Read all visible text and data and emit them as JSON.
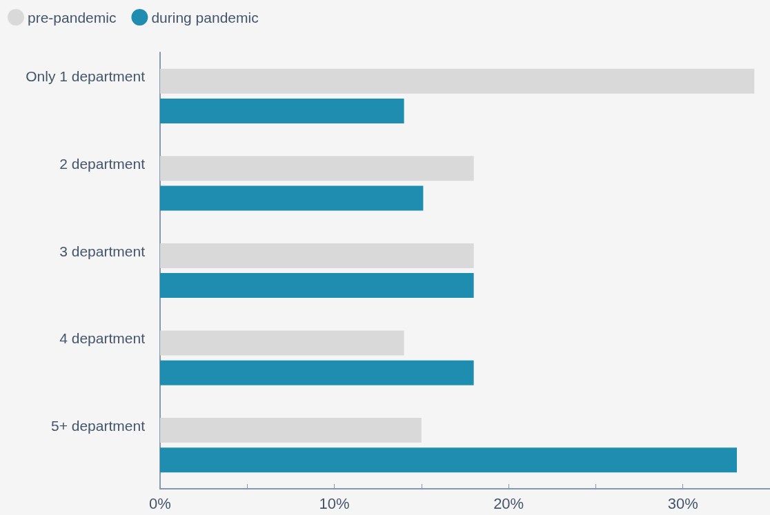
{
  "chart_data": {
    "type": "bar",
    "orientation": "horizontal",
    "categories": [
      "Only 1 department",
      "2 department",
      "3 department",
      "4 department",
      "5+ department"
    ],
    "series": [
      {
        "name": "pre-pandemic",
        "color": "#d9d9d9",
        "values": [
          34.1,
          18,
          18,
          14,
          15
        ]
      },
      {
        "name": "during pandemic",
        "color": "#1e8db0",
        "values": [
          14,
          15.1,
          18,
          18,
          33.1
        ]
      }
    ],
    "xlim": [
      0,
      35
    ],
    "xticks": [
      {
        "value": 0,
        "label": "0%"
      },
      {
        "value": 5,
        "label": null
      },
      {
        "value": 10,
        "label": "10%"
      },
      {
        "value": 15,
        "label": null
      },
      {
        "value": 20,
        "label": "20%"
      },
      {
        "value": 25,
        "label": null
      },
      {
        "value": 30,
        "label": "30%"
      }
    ],
    "grid": false,
    "legend": "top left"
  }
}
